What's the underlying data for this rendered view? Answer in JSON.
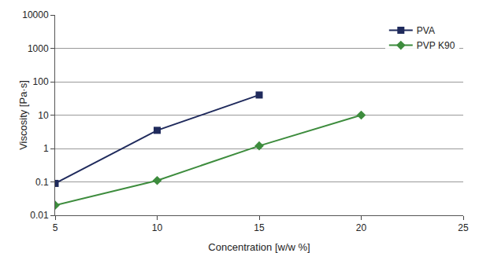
{
  "chart_data": {
    "type": "line",
    "x_label": "Concentration [w/w %]",
    "y_label": "Viscosity [Pa·s]",
    "log": "y",
    "grid": true,
    "legend": "top right",
    "xlim": [
      5,
      25
    ],
    "xticks": [
      5,
      10,
      15,
      20,
      25
    ],
    "ylim": [
      0.01,
      10000
    ],
    "yticks": [
      0.01,
      0.1,
      1,
      10,
      100,
      1000,
      10000
    ],
    "series": [
      {
        "name": "PVA",
        "color": "#1f2a5c",
        "marker": "square",
        "line_style": "solid",
        "x": [
          5,
          10,
          15
        ],
        "values": [
          0.09,
          3.5,
          40
        ]
      },
      {
        "name": "PVP K90",
        "color": "#3d8c3d",
        "marker": "diamond",
        "line_style": "solid",
        "x": [
          5,
          10,
          15,
          20
        ],
        "values": [
          0.02,
          0.11,
          1.2,
          10
        ]
      }
    ]
  }
}
